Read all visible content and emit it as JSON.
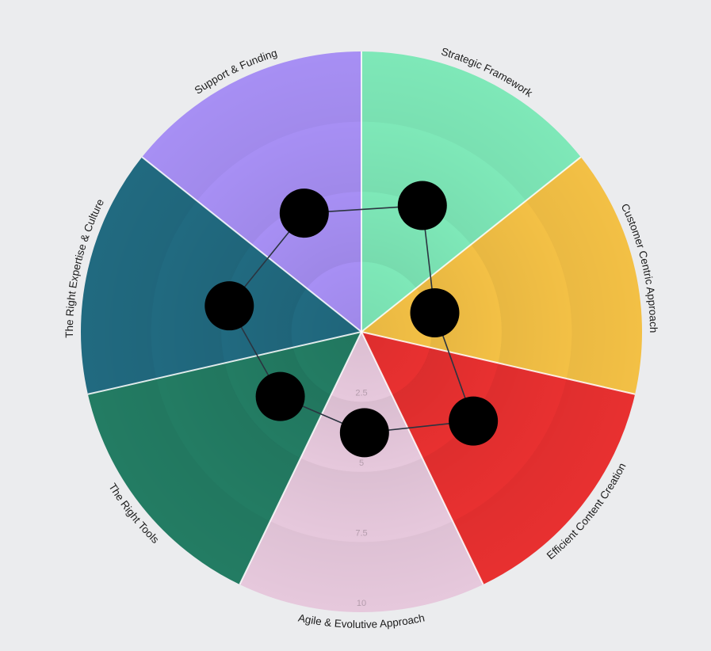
{
  "chart_data": {
    "type": "polar-area",
    "title": "",
    "center": [
      456,
      419
    ],
    "radius": 354,
    "scale_max": 10,
    "ticks": [
      "2.5",
      "5",
      "7.5",
      "10"
    ],
    "tick_values": [
      2.5,
      5,
      7.5,
      10
    ],
    "categories": [
      "Strategic Framework",
      "Customer Centric Approach",
      "Efficient Content Creation",
      "Agile & Evolutive Approach",
      "The Right Tools",
      "The Right Expertise & Culture",
      "Support & Funding"
    ],
    "colors": [
      "#7EE8B8",
      "#F3C045",
      "#E83030",
      "#E6C8DC",
      "#237C63",
      "#216A80",
      "#A78FF4"
    ],
    "values": [
      5.0,
      2.7,
      5.1,
      3.6,
      3.7,
      4.8,
      4.7
    ],
    "point_color": "#000000",
    "line_color": "#2B3440",
    "background": "#EBECEE",
    "legend": "none",
    "grid": "concentric rings at 2.5, 5, 7.5, 10"
  }
}
